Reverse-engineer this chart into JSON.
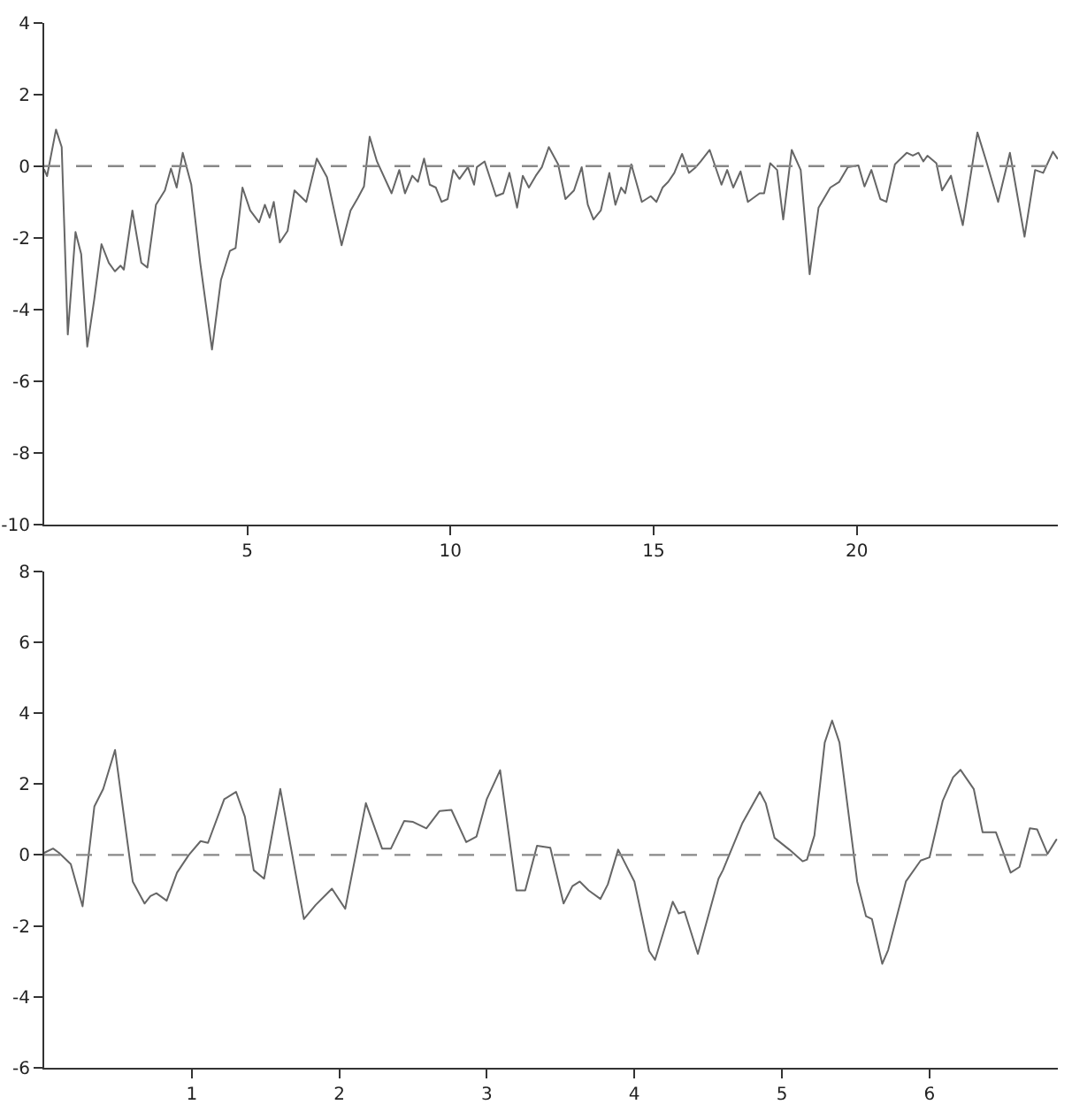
{
  "chart_data": [
    {
      "type": "line",
      "color": "#666666",
      "xlim": [
        0,
        24.95
      ],
      "ylim": [
        -10,
        4
      ],
      "xticks": [
        5,
        10,
        15,
        20
      ],
      "yticks": [
        -10,
        -8,
        -6,
        -4,
        -2,
        0,
        2,
        4
      ],
      "ref_lines": [
        {
          "axis": "y",
          "value": 0,
          "color": "#888888",
          "line_style": "dashed"
        }
      ],
      "x": [
        0,
        0.07,
        0.29,
        0.43,
        0.58,
        0.77,
        0.91,
        1.06,
        1.23,
        1.41,
        1.59,
        1.74,
        1.88,
        1.96,
        2.17,
        2.39,
        2.54,
        2.75,
        2.97,
        3.12,
        3.26,
        3.41,
        3.62,
        3.84,
        4.13,
        4.35,
        4.57,
        4.71,
        4.88,
        5.07,
        5.29,
        5.43,
        5.55,
        5.65,
        5.8,
        5.99,
        6.16,
        6.45,
        6.71,
        6.96,
        7.32,
        7.54,
        7.72,
        7.87,
        8.01,
        8.19,
        8.55,
        8.74,
        8.88,
        9.06,
        9.2,
        9.35,
        9.49,
        9.64,
        9.78,
        9.93,
        10.07,
        10.22,
        10.43,
        10.58,
        10.65,
        10.84,
        11.12,
        11.3,
        11.45,
        11.64,
        11.78,
        11.93,
        12.1,
        12.25,
        12.42,
        12.65,
        12.83,
        13.04,
        13.23,
        13.38,
        13.52,
        13.7,
        13.91,
        14.06,
        14.2,
        14.3,
        14.45,
        14.71,
        14.93,
        15.07,
        15.22,
        15.36,
        15.51,
        15.7,
        15.87,
        16.04,
        16.16,
        16.38,
        16.67,
        16.81,
        16.96,
        17.14,
        17.32,
        17.61,
        17.72,
        17.87,
        18.04,
        18.19,
        18.4,
        18.62,
        18.84,
        19.06,
        19.35,
        19.57,
        19.78,
        20.04,
        20.19,
        20.36,
        20.58,
        20.73,
        20.94,
        21.23,
        21.38,
        21.52,
        21.64,
        21.74,
        21.96,
        22.1,
        22.32,
        22.61,
        22.97,
        23.19,
        23.48,
        23.77,
        24.13,
        24.39,
        24.59,
        24.83,
        24.94
      ],
      "values": [
        -0.1,
        -0.28,
        1.02,
        0.53,
        -4.7,
        -1.84,
        -2.46,
        -5.04,
        -3.73,
        -2.18,
        -2.7,
        -2.94,
        -2.78,
        -2.89,
        -1.24,
        -2.7,
        -2.83,
        -1.08,
        -0.68,
        -0.07,
        -0.6,
        0.37,
        -0.52,
        -2.7,
        -5.12,
        -3.18,
        -2.37,
        -2.29,
        -0.6,
        -1.24,
        -1.57,
        -1.08,
        -1.44,
        -1.0,
        -2.13,
        -1.81,
        -0.68,
        -1.0,
        0.21,
        -0.31,
        -2.21,
        -1.24,
        -0.89,
        -0.57,
        0.82,
        0.13,
        -0.76,
        -0.11,
        -0.76,
        -0.27,
        -0.44,
        0.21,
        -0.52,
        -0.6,
        -1.0,
        -0.92,
        -0.11,
        -0.36,
        -0.03,
        -0.52,
        -0.03,
        0.13,
        -0.84,
        -0.76,
        -0.19,
        -1.16,
        -0.27,
        -0.6,
        -0.27,
        -0.03,
        0.53,
        0.05,
        -0.92,
        -0.68,
        -0.03,
        -1.08,
        -1.49,
        -1.24,
        -0.19,
        -1.08,
        -0.6,
        -0.76,
        0.05,
        -1.0,
        -0.84,
        -1.0,
        -0.6,
        -0.44,
        -0.19,
        0.34,
        -0.19,
        -0.03,
        0.13,
        0.45,
        -0.52,
        -0.11,
        -0.6,
        -0.15,
        -1.0,
        -0.76,
        -0.76,
        0.08,
        -0.11,
        -1.49,
        0.45,
        -0.11,
        -3.02,
        -1.16,
        -0.6,
        -0.44,
        -0.03,
        0.02,
        -0.57,
        -0.11,
        -0.92,
        -1.0,
        0.05,
        0.37,
        0.29,
        0.37,
        0.13,
        0.29,
        0.08,
        -0.68,
        -0.27,
        -1.65,
        0.94,
        0.13,
        -1.0,
        0.37,
        -1.97,
        -0.11,
        -0.19,
        0.4,
        0.21
      ]
    },
    {
      "type": "line",
      "color": "#666666",
      "xlim": [
        0,
        6.87
      ],
      "ylim": [
        -6,
        8
      ],
      "xticks": [
        1,
        2,
        3,
        4,
        5,
        6
      ],
      "yticks": [
        -6,
        -4,
        -2,
        0,
        2,
        4,
        6,
        8
      ],
      "ref_lines": [
        {
          "axis": "y",
          "value": 0,
          "color": "#888888",
          "line_style": "dashed"
        }
      ],
      "x": [
        0,
        0.06,
        0.1,
        0.18,
        0.26,
        0.34,
        0.4,
        0.48,
        0.6,
        0.68,
        0.72,
        0.76,
        0.83,
        0.9,
        0.98,
        1.06,
        1.11,
        1.22,
        1.3,
        1.36,
        1.42,
        1.49,
        1.6,
        1.76,
        1.84,
        1.95,
        2.04,
        2.18,
        2.29,
        2.35,
        2.44,
        2.5,
        2.59,
        2.68,
        2.76,
        2.86,
        2.93,
        3.0,
        3.09,
        3.2,
        3.26,
        3.34,
        3.43,
        3.52,
        3.58,
        3.63,
        3.69,
        3.77,
        3.82,
        3.89,
        4.0,
        4.1,
        4.14,
        4.26,
        4.3,
        4.34,
        4.43,
        4.57,
        4.6,
        4.73,
        4.85,
        4.89,
        4.95,
        5.05,
        5.14,
        5.17,
        5.22,
        5.29,
        5.34,
        5.39,
        5.51,
        5.57,
        5.61,
        5.68,
        5.72,
        5.84,
        5.94,
        6.0,
        6.09,
        6.16,
        6.21,
        6.3,
        6.36,
        6.45,
        6.55,
        6.61,
        6.68,
        6.73,
        6.8,
        6.86
      ],
      "values": [
        0.06,
        0.18,
        0.06,
        -0.26,
        -1.45,
        1.37,
        1.86,
        2.96,
        -0.75,
        -1.37,
        -1.16,
        -1.08,
        -1.29,
        -0.5,
        0.0,
        0.39,
        0.34,
        1.57,
        1.78,
        1.08,
        -0.43,
        -0.67,
        1.86,
        -1.81,
        -1.41,
        -0.95,
        -1.52,
        1.46,
        0.18,
        0.18,
        0.96,
        0.93,
        0.75,
        1.24,
        1.27,
        0.36,
        0.52,
        1.58,
        2.39,
        -1.0,
        -1.0,
        0.26,
        0.2,
        -1.37,
        -0.88,
        -0.75,
        -1.0,
        -1.24,
        -0.83,
        0.15,
        -0.75,
        -2.71,
        -2.96,
        -1.32,
        -1.65,
        -1.6,
        -2.79,
        -0.67,
        -0.43,
        0.88,
        1.78,
        1.46,
        0.48,
        0.15,
        -0.18,
        -0.13,
        0.55,
        3.17,
        3.79,
        3.17,
        -0.75,
        -1.73,
        -1.81,
        -3.07,
        -2.68,
        -0.75,
        -0.16,
        -0.07,
        1.53,
        2.19,
        2.4,
        1.86,
        0.64,
        0.64,
        -0.5,
        -0.34,
        0.75,
        0.72,
        0.03,
        0.43
      ]
    }
  ]
}
